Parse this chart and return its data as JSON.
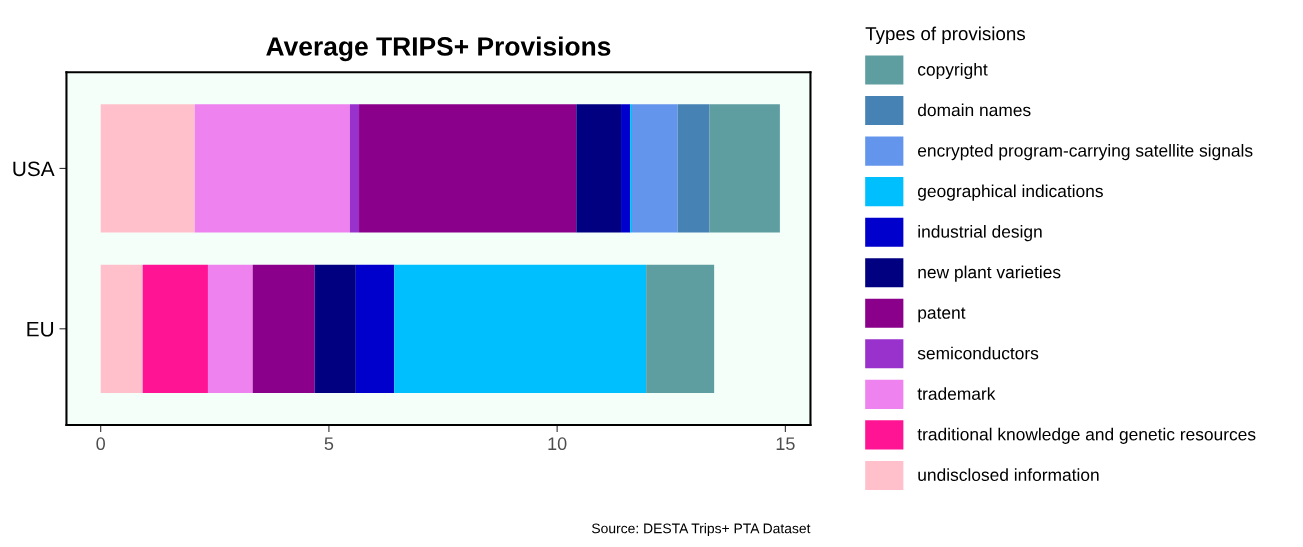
{
  "chart_data": {
    "type": "bar",
    "orientation": "horizontal",
    "stacked": true,
    "title": "Average TRIPS+ Provisions",
    "legend_title": "Types of provisions",
    "legend": "right",
    "grid": false,
    "categories": [
      "USA",
      "EU"
    ],
    "xlim": [
      -0.75,
      15.55
    ],
    "xticks": [
      0,
      5,
      10,
      15
    ],
    "series": [
      {
        "name": "undisclosed information",
        "color": "#ffc0cb",
        "values": [
          2.06,
          0.92
        ]
      },
      {
        "name": "traditional knowledge and genetic resources",
        "color": "#ff1493",
        "values": [
          null,
          1.43
        ]
      },
      {
        "name": "trademark",
        "color": "#ee82ee",
        "values": [
          3.4,
          0.98
        ]
      },
      {
        "name": "semiconductors",
        "color": "#9932cc",
        "values": [
          0.2,
          null
        ]
      },
      {
        "name": "patent",
        "color": "#8b008b",
        "values": [
          4.76,
          1.36
        ]
      },
      {
        "name": "new plant varieties",
        "color": "#000080",
        "values": [
          0.98,
          0.9
        ]
      },
      {
        "name": "industrial design",
        "color": "#0000cd",
        "values": [
          0.2,
          0.84
        ]
      },
      {
        "name": "geographical indications",
        "color": "#00bfff",
        "values": [
          0.04,
          5.52
        ]
      },
      {
        "name": "encrypted program-carrying satellite signals",
        "color": "#6495ed",
        "values": [
          1.0,
          null
        ]
      },
      {
        "name": "domain names",
        "color": "#4682b4",
        "values": [
          0.7,
          null
        ]
      },
      {
        "name": "copyright",
        "color": "#5f9ea0",
        "values": [
          1.54,
          1.49
        ]
      }
    ],
    "annotations": [
      "Source: DESTA Trips+ PTA Dataset"
    ]
  }
}
